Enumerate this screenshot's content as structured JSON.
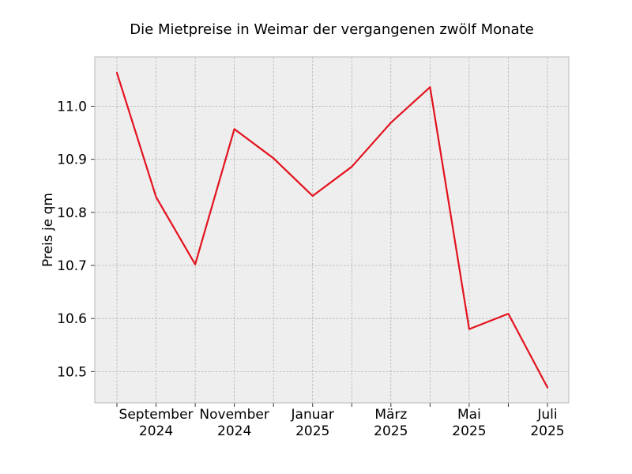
{
  "chart_data": {
    "type": "line",
    "title": "Die Mietpreise in Weimar der vergangenen zwölf Monate",
    "xlabel": "",
    "ylabel": "Preis je qm",
    "x": [
      "2024-08",
      "2024-09",
      "2024-10",
      "2024-11",
      "2024-12",
      "2025-01",
      "2025-02",
      "2025-03",
      "2025-04",
      "2025-05",
      "2025-06",
      "2025-07"
    ],
    "series": [
      {
        "values": [
          11.063,
          10.829,
          10.702,
          10.957,
          10.902,
          10.831,
          10.886,
          10.969,
          11.036,
          10.58,
          10.609,
          10.47
        ],
        "color": "#e3121e"
      }
    ],
    "x_tick_labels": [
      {
        "index": 1,
        "line1": "September",
        "line2": "2024"
      },
      {
        "index": 3,
        "line1": "November",
        "line2": "2024"
      },
      {
        "index": 5,
        "line1": "Januar",
        "line2": "2025"
      },
      {
        "index": 7,
        "line1": "März",
        "line2": "2025"
      },
      {
        "index": 9,
        "line1": "Mai",
        "line2": "2025"
      },
      {
        "index": 11,
        "line1": "Juli",
        "line2": "2025"
      }
    ],
    "y_ticks": [
      10.5,
      10.6,
      10.7,
      10.8,
      10.9,
      11.0
    ],
    "y_tick_labels": [
      "10.5",
      "10.6",
      "10.7",
      "10.8",
      "10.9",
      "11.0"
    ],
    "ylim": [
      10.441,
      11.093
    ],
    "grid": true,
    "background_color": "#eeeeee",
    "grid_color": "#b0b0b0"
  }
}
